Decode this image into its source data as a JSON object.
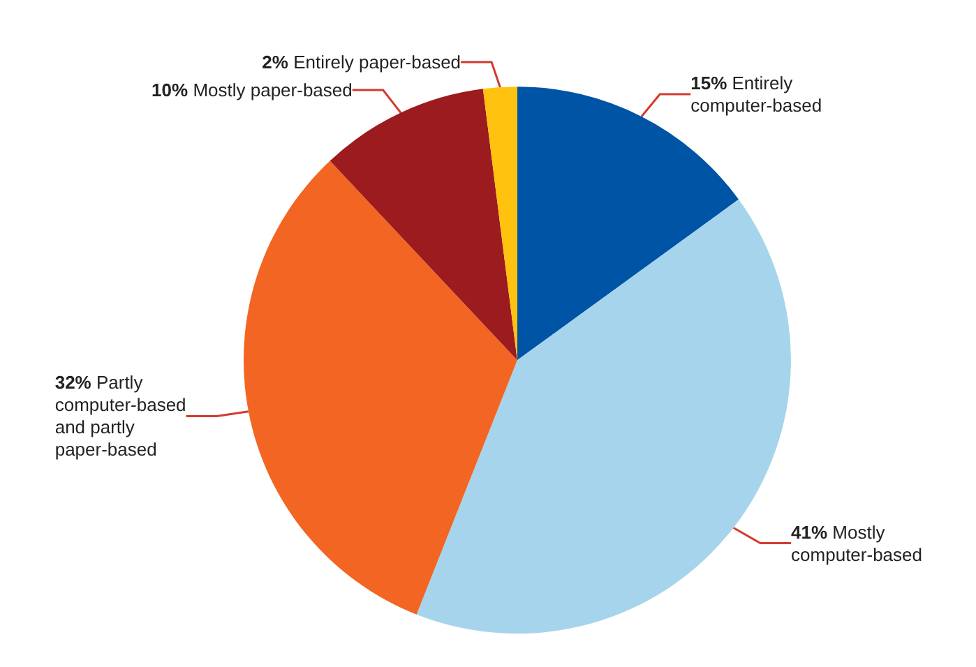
{
  "chart_data": {
    "type": "pie",
    "categories": [
      "Entirely computer-based",
      "Mostly computer-based",
      "Partly computer-based and partly paper-based",
      "Mostly paper-based",
      "Entirely paper-based"
    ],
    "values": [
      15,
      41,
      32,
      10,
      2
    ],
    "value_labels": [
      "15%",
      "41%",
      "32%",
      "10%",
      "2%"
    ],
    "colors": [
      "#0054a6",
      "#a6d4ec",
      "#f26522",
      "#9b1b1f",
      "#ffc20e"
    ],
    "legend": false
  }
}
